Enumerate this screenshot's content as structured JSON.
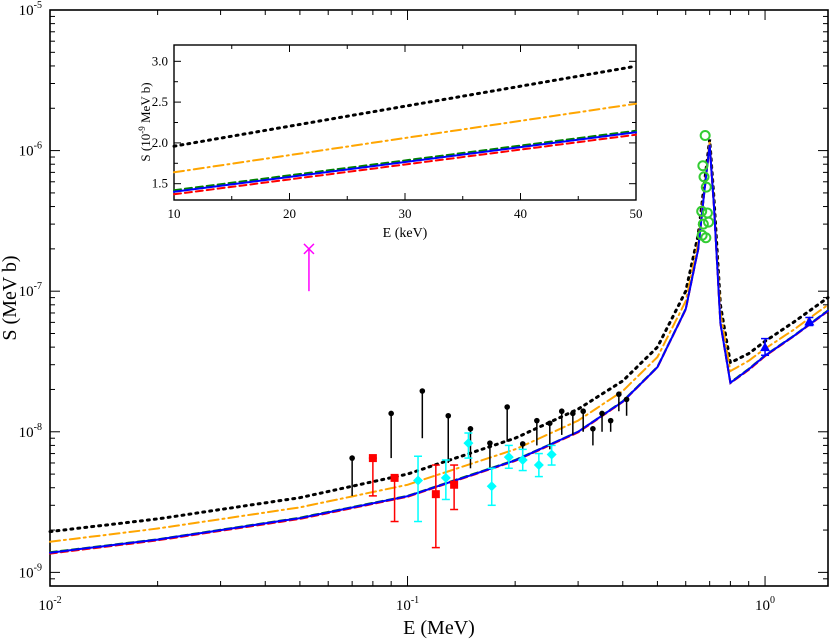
{
  "chart_data": [
    {
      "type": "line",
      "scale": "log-log",
      "xlabel": "E (MeV)",
      "ylabel": "S (MeV b)",
      "xlim": [
        0.01,
        1.5
      ],
      "ylim": [
        8e-10,
        1e-05
      ],
      "x_ticks": [
        {
          "value": 0.01,
          "base": "10",
          "exp": "-2"
        },
        {
          "value": 0.1,
          "base": "10",
          "exp": "-1"
        },
        {
          "value": 1,
          "base": "10",
          "exp": "0"
        }
      ],
      "y_ticks": [
        {
          "value": 1e-09,
          "base": "10",
          "exp": "-9"
        },
        {
          "value": 1e-08,
          "base": "10",
          "exp": "-8"
        },
        {
          "value": 1e-07,
          "base": "10",
          "exp": "-7"
        },
        {
          "value": 1e-06,
          "base": "10",
          "exp": "-6"
        },
        {
          "value": 1e-05,
          "base": "10",
          "exp": "-5"
        }
      ],
      "series": [
        {
          "name": "dotted",
          "color": "#000000",
          "dash": "dotted",
          "x": [
            0.01,
            0.02,
            0.05,
            0.1,
            0.2,
            0.3,
            0.4,
            0.5,
            0.6,
            0.65,
            0.68,
            0.7,
            0.72,
            0.75,
            0.8,
            0.9,
            1.0,
            1.2,
            1.5
          ],
          "y": [
            1.95e-09,
            2.4e-09,
            3.4e-09,
            5e-09,
            9e-09,
            1.45e-08,
            2.3e-08,
            4e-08,
            1e-07,
            2.5e-07,
            6.5e-07,
            1.2e-06,
            4.5e-07,
            8e-08,
            3.1e-08,
            3.6e-08,
            4.4e-08,
            6e-08,
            9e-08
          ]
        },
        {
          "name": "dash-dot",
          "color": "#ffa500",
          "dash": "dashdot",
          "x": [
            0.01,
            0.02,
            0.05,
            0.1,
            0.2,
            0.3,
            0.4,
            0.5,
            0.6,
            0.65,
            0.68,
            0.7,
            0.72,
            0.75,
            0.8,
            0.9,
            1.0,
            1.2,
            1.5
          ],
          "y": [
            1.65e-09,
            2.05e-09,
            2.9e-09,
            4.2e-09,
            7.5e-09,
            1.2e-08,
            1.95e-08,
            3.4e-08,
            8.5e-08,
            2.2e-07,
            6e-07,
            1.15e-06,
            4.2e-07,
            7e-08,
            2.7e-08,
            3.2e-08,
            3.9e-08,
            5.3e-08,
            8e-08
          ]
        },
        {
          "name": "dashed-green",
          "color": "#008000",
          "dash": "dashed",
          "x": [
            0.01,
            0.02,
            0.05,
            0.1,
            0.2,
            0.3,
            0.4,
            0.5,
            0.6,
            0.65,
            0.68,
            0.7,
            0.72,
            0.75,
            0.8,
            0.9,
            1.0,
            1.2,
            1.5
          ],
          "y": [
            1.39e-09,
            1.72e-09,
            2.45e-09,
            3.5e-09,
            6.3e-09,
            1e-08,
            1.65e-08,
            2.9e-08,
            7.5e-08,
            2e-07,
            5.8e-07,
            1.1e-06,
            4e-07,
            6e-08,
            2.25e-08,
            2.8e-08,
            3.5e-08,
            4.8e-08,
            7.3e-08
          ]
        },
        {
          "name": "dashed-red",
          "color": "#ff0000",
          "dash": "dashed",
          "x": [
            0.01,
            0.02,
            0.05,
            0.1,
            0.2,
            0.3,
            0.4,
            0.5,
            0.6,
            0.65,
            0.68,
            0.7,
            0.72,
            0.75,
            0.8,
            0.9,
            1.0,
            1.2,
            1.5
          ],
          "y": [
            1.36e-09,
            1.69e-09,
            2.4e-09,
            3.45e-09,
            6.2e-09,
            9.9e-09,
            1.63e-08,
            2.87e-08,
            7.4e-08,
            1.98e-07,
            5.75e-07,
            1.09e-06,
            3.95e-07,
            5.9e-08,
            2.22e-08,
            2.75e-08,
            3.45e-08,
            4.75e-08,
            7.2e-08
          ]
        },
        {
          "name": "solid-blue",
          "color": "#0000ff",
          "dash": "solid",
          "x": [
            0.01,
            0.02,
            0.05,
            0.1,
            0.2,
            0.3,
            0.4,
            0.5,
            0.6,
            0.65,
            0.68,
            0.7,
            0.72,
            0.75,
            0.8,
            0.9,
            1.0,
            1.2,
            1.5
          ],
          "y": [
            1.38e-09,
            1.71e-09,
            2.43e-09,
            3.48e-09,
            6.25e-09,
            1e-08,
            1.64e-08,
            2.88e-08,
            7.45e-08,
            1.99e-07,
            5.78e-07,
            1.1e-06,
            3.98e-07,
            5.95e-08,
            2.23e-08,
            2.78e-08,
            3.48e-08,
            4.78e-08,
            7.25e-08
          ]
        }
      ],
      "data_points": [
        {
          "name": "black-circles",
          "color": "#000000",
          "marker": "circle",
          "points": [
            {
              "x": 0.07,
              "y": 6.5e-09,
              "ylo": 3.5e-09
            },
            {
              "x": 0.09,
              "y": 1.35e-08,
              "ylo": 6.5e-09
            },
            {
              "x": 0.11,
              "y": 1.95e-08,
              "ylo": 9e-09
            },
            {
              "x": 0.13,
              "y": 1.3e-08,
              "ylo": 6e-09
            },
            {
              "x": 0.15,
              "y": 1.05e-08,
              "ylo": 5.5e-09
            },
            {
              "x": 0.17,
              "y": 8.3e-09,
              "ylo": 5.5e-09
            },
            {
              "x": 0.19,
              "y": 1.5e-08,
              "ylo": 8.5e-09
            },
            {
              "x": 0.21,
              "y": 8.2e-09,
              "ylo": 6.5e-09
            },
            {
              "x": 0.23,
              "y": 1.2e-08,
              "ylo": 8e-09
            },
            {
              "x": 0.25,
              "y": 1.15e-08,
              "ylo": 7.5e-09
            },
            {
              "x": 0.27,
              "y": 1.4e-08,
              "ylo": 9.5e-09
            },
            {
              "x": 0.29,
              "y": 1.35e-08,
              "ylo": 9.5e-09
            },
            {
              "x": 0.31,
              "y": 1.4e-08,
              "ylo": 1e-08
            },
            {
              "x": 0.33,
              "y": 1.05e-08,
              "ylo": 8e-09
            },
            {
              "x": 0.35,
              "y": 1.35e-08,
              "ylo": 1e-08
            },
            {
              "x": 0.37,
              "y": 1.2e-08,
              "ylo": 1e-08
            },
            {
              "x": 0.39,
              "y": 1.85e-08,
              "ylo": 1.4e-08
            },
            {
              "x": 0.41,
              "y": 1.7e-08,
              "ylo": 1.3e-08
            }
          ]
        },
        {
          "name": "red-squares",
          "color": "#ff0000",
          "marker": "square",
          "points": [
            {
              "x": 0.08,
              "y": 6.5e-09,
              "ylo": 3.5e-09,
              "yhi": 6.5e-09
            },
            {
              "x": 0.092,
              "y": 4.7e-09,
              "ylo": 2.3e-09,
              "yhi": 4.7e-09
            },
            {
              "x": 0.12,
              "y": 3.6e-09,
              "ylo": 1.5e-09,
              "yhi": 5.8e-09
            },
            {
              "x": 0.135,
              "y": 4.2e-09,
              "ylo": 2.8e-09,
              "yhi": 5.8e-09
            }
          ]
        },
        {
          "name": "cyan-diamonds",
          "color": "#00ffff",
          "marker": "diamond",
          "points": [
            {
              "x": 0.107,
              "y": 4.5e-09,
              "ylo": 2.3e-09,
              "yhi": 6.7e-09
            },
            {
              "x": 0.128,
              "y": 4.7e-09,
              "ylo": 3.3e-09,
              "yhi": 6.3e-09
            },
            {
              "x": 0.148,
              "y": 8.3e-09,
              "ylo": 6.5e-09,
              "yhi": 9.8e-09
            },
            {
              "x": 0.172,
              "y": 4.1e-09,
              "ylo": 3e-09,
              "yhi": 5.5e-09
            },
            {
              "x": 0.192,
              "y": 6.6e-09,
              "ylo": 5.5e-09,
              "yhi": 8e-09
            },
            {
              "x": 0.21,
              "y": 6.3e-09,
              "ylo": 5.3e-09,
              "yhi": 7.5e-09
            },
            {
              "x": 0.233,
              "y": 5.8e-09,
              "ylo": 4.8e-09,
              "yhi": 7e-09
            },
            {
              "x": 0.253,
              "y": 6.9e-09,
              "ylo": 5.8e-09,
              "yhi": 8e-09
            }
          ]
        },
        {
          "name": "green-circles",
          "color": "#33cc33",
          "marker": "open-circle",
          "points": [
            {
              "x": 0.68,
              "y": 1.28e-06
            },
            {
              "x": 0.67,
              "y": 7.8e-07
            },
            {
              "x": 0.675,
              "y": 6.5e-07
            },
            {
              "x": 0.685,
              "y": 5.5e-07
            },
            {
              "x": 0.665,
              "y": 3.7e-07
            },
            {
              "x": 0.69,
              "y": 3.6e-07
            },
            {
              "x": 0.672,
              "y": 3e-07
            },
            {
              "x": 0.695,
              "y": 3.1e-07
            },
            {
              "x": 0.667,
              "y": 2.5e-07
            },
            {
              "x": 0.683,
              "y": 2.4e-07
            }
          ]
        },
        {
          "name": "blue-triangles",
          "color": "#0000ff",
          "marker": "triangle",
          "points": [
            {
              "x": 1.0,
              "y": 4e-08,
              "ylo": 3.5e-08,
              "yhi": 4.6e-08
            },
            {
              "x": 1.33,
              "y": 6.1e-08,
              "ylo": 5.7e-08,
              "yhi": 6.5e-08
            }
          ]
        },
        {
          "name": "magenta-limit",
          "color": "#ff00ff",
          "marker": "x",
          "points": [
            {
              "x": 0.053,
              "y": 2e-07,
              "ylo": 1e-07
            }
          ]
        }
      ]
    },
    {
      "type": "line",
      "inset": true,
      "xlabel": "E (keV)",
      "ylabel_main": "S (10",
      "ylabel_sup": "-9",
      "ylabel_tail": " MeV b)",
      "xlim": [
        10,
        50
      ],
      "ylim": [
        1.3,
        3.2
      ],
      "x_ticks": [
        "10",
        "20",
        "30",
        "40",
        "50"
      ],
      "y_ticks": [
        "1.5",
        "2.0",
        "2.5",
        "3.0"
      ],
      "series": [
        {
          "name": "dotted",
          "color": "#000000",
          "dash": "dotted",
          "x": [
            10,
            50
          ],
          "y": [
            1.96,
            2.94
          ]
        },
        {
          "name": "dash-dot",
          "color": "#ffa500",
          "dash": "dashdot",
          "x": [
            10,
            50
          ],
          "y": [
            1.64,
            2.48
          ]
        },
        {
          "name": "dashed-green",
          "color": "#008000",
          "dash": "dashed",
          "x": [
            10,
            50
          ],
          "y": [
            1.42,
            2.15
          ]
        },
        {
          "name": "solid-blue",
          "color": "#0000ff",
          "dash": "solid",
          "x": [
            10,
            50
          ],
          "y": [
            1.4,
            2.13
          ]
        },
        {
          "name": "dashed-red",
          "color": "#ff0000",
          "dash": "dashed",
          "x": [
            10,
            50
          ],
          "y": [
            1.37,
            2.1
          ]
        }
      ]
    }
  ]
}
